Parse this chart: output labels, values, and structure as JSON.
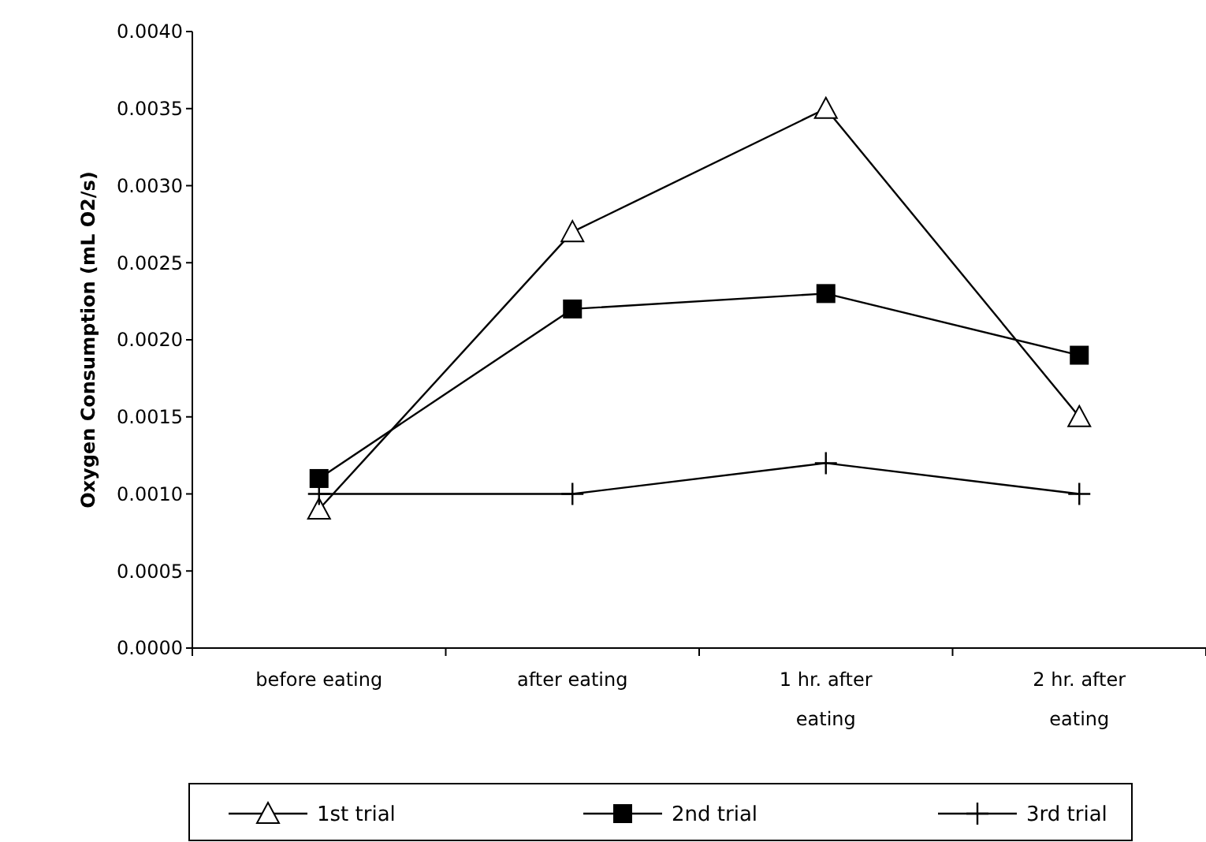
{
  "chart_data": {
    "type": "line",
    "ylabel": "Oxygen Consumption (mL O2/s)",
    "categories": [
      "before eating",
      "after eating",
      "1 hr. after eating",
      "2 hr. after eating"
    ],
    "series": [
      {
        "name": "1st trial",
        "color": "#000000",
        "marker": "triangle",
        "values": [
          0.0009,
          0.0027,
          0.0035,
          0.0015
        ]
      },
      {
        "name": "2nd trial",
        "color": "#000000",
        "marker": "square",
        "values": [
          0.0011,
          0.0022,
          0.0023,
          0.0019
        ]
      },
      {
        "name": "3rd trial",
        "color": "#000000",
        "marker": "cross",
        "values": [
          0.001,
          0.001,
          0.0012,
          0.001
        ]
      }
    ],
    "ylim": [
      0,
      0.004
    ],
    "yticks": [
      {
        "value": 0,
        "label": "0.0000"
      },
      {
        "value": 0.0005,
        "label": "0.0005"
      },
      {
        "value": 0.001,
        "label": "0.0010"
      },
      {
        "value": 0.0015,
        "label": "0.0015"
      },
      {
        "value": 0.002,
        "label": "0.0020"
      },
      {
        "value": 0.0025,
        "label": "0.0025"
      },
      {
        "value": 0.003,
        "label": "0.0030"
      },
      {
        "value": 0.0035,
        "label": "0.0035"
      },
      {
        "value": 0.004,
        "label": "0.0040"
      }
    ],
    "grid": false,
    "legend": "bottom",
    "line_style": "solid"
  }
}
